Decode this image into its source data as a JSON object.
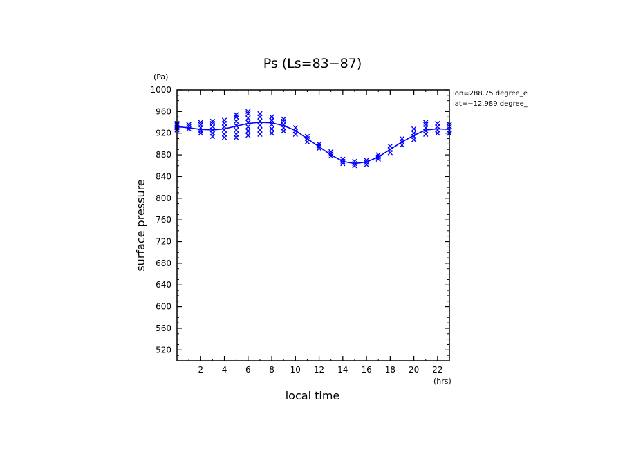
{
  "chart_data": {
    "type": "line",
    "title": "Ps (Ls=83−87)",
    "xlabel": "local time",
    "ylabel": "surface pressure",
    "x_unit": "(hrs)",
    "y_unit": "(Pa)",
    "xlim": [
      0,
      23
    ],
    "ylim": [
      500,
      1000
    ],
    "x_ticks": [
      2,
      4,
      6,
      8,
      10,
      12,
      14,
      16,
      18,
      20,
      22
    ],
    "y_ticks": [
      520,
      560,
      600,
      640,
      680,
      720,
      760,
      800,
      840,
      880,
      920,
      960,
      1000
    ],
    "annotations": [
      "lon=288.75 degree_e",
      "lat=−12.989 degree_"
    ],
    "colors": {
      "series": "#0000ff",
      "axes": "#000000"
    },
    "series": [
      {
        "type": "line",
        "x": [
          0,
          1,
          2,
          3,
          4,
          5,
          6,
          7,
          8,
          9,
          10,
          11,
          12,
          13,
          14,
          15,
          16,
          17,
          18,
          19,
          20,
          21,
          22,
          23
        ],
        "values": [
          932,
          930,
          927,
          926,
          928,
          933,
          938,
          940,
          939,
          934,
          925,
          910,
          895,
          880,
          868,
          864,
          867,
          876,
          890,
          904,
          916,
          926,
          928,
          927
        ]
      },
      {
        "type": "scatter",
        "marker": "x",
        "points": [
          [
            0,
            930
          ],
          [
            0,
            934
          ],
          [
            0,
            938
          ],
          [
            0,
            926
          ],
          [
            0,
            936
          ],
          [
            1,
            928
          ],
          [
            1,
            932
          ],
          [
            1,
            936
          ],
          [
            2,
            920
          ],
          [
            2,
            924
          ],
          [
            2,
            930
          ],
          [
            2,
            936
          ],
          [
            2,
            940
          ],
          [
            3,
            914
          ],
          [
            3,
            920
          ],
          [
            3,
            926
          ],
          [
            3,
            932
          ],
          [
            3,
            938
          ],
          [
            3,
            942
          ],
          [
            4,
            912
          ],
          [
            4,
            918
          ],
          [
            4,
            926
          ],
          [
            4,
            932
          ],
          [
            4,
            938
          ],
          [
            4,
            944
          ],
          [
            5,
            912
          ],
          [
            5,
            918
          ],
          [
            5,
            926
          ],
          [
            5,
            934
          ],
          [
            5,
            942
          ],
          [
            5,
            950
          ],
          [
            5,
            954
          ],
          [
            6,
            916
          ],
          [
            6,
            924
          ],
          [
            6,
            932
          ],
          [
            6,
            940
          ],
          [
            6,
            948
          ],
          [
            6,
            956
          ],
          [
            6,
            960
          ],
          [
            7,
            918
          ],
          [
            7,
            926
          ],
          [
            7,
            934
          ],
          [
            7,
            942
          ],
          [
            7,
            950
          ],
          [
            7,
            956
          ],
          [
            8,
            920
          ],
          [
            8,
            928
          ],
          [
            8,
            936
          ],
          [
            8,
            944
          ],
          [
            8,
            950
          ],
          [
            9,
            924
          ],
          [
            9,
            930
          ],
          [
            9,
            936
          ],
          [
            9,
            942
          ],
          [
            9,
            946
          ],
          [
            10,
            918
          ],
          [
            10,
            924
          ],
          [
            10,
            930
          ],
          [
            11,
            904
          ],
          [
            11,
            910
          ],
          [
            11,
            914
          ],
          [
            12,
            892
          ],
          [
            12,
            896
          ],
          [
            12,
            900
          ],
          [
            13,
            878
          ],
          [
            13,
            882
          ],
          [
            13,
            886
          ],
          [
            14,
            864
          ],
          [
            14,
            868
          ],
          [
            14,
            872
          ],
          [
            15,
            860
          ],
          [
            15,
            864
          ],
          [
            15,
            868
          ],
          [
            16,
            862
          ],
          [
            16,
            866
          ],
          [
            16,
            870
          ],
          [
            17,
            872
          ],
          [
            17,
            876
          ],
          [
            17,
            880
          ],
          [
            18,
            884
          ],
          [
            18,
            890
          ],
          [
            18,
            896
          ],
          [
            19,
            898
          ],
          [
            19,
            904
          ],
          [
            19,
            910
          ],
          [
            20,
            908
          ],
          [
            20,
            914
          ],
          [
            20,
            920
          ],
          [
            20,
            928
          ],
          [
            21,
            918
          ],
          [
            21,
            924
          ],
          [
            21,
            930
          ],
          [
            21,
            936
          ],
          [
            21,
            940
          ],
          [
            22,
            920
          ],
          [
            22,
            926
          ],
          [
            22,
            932
          ],
          [
            22,
            938
          ],
          [
            23,
            920
          ],
          [
            23,
            926
          ],
          [
            23,
            932
          ],
          [
            23,
            936
          ]
        ]
      }
    ]
  }
}
